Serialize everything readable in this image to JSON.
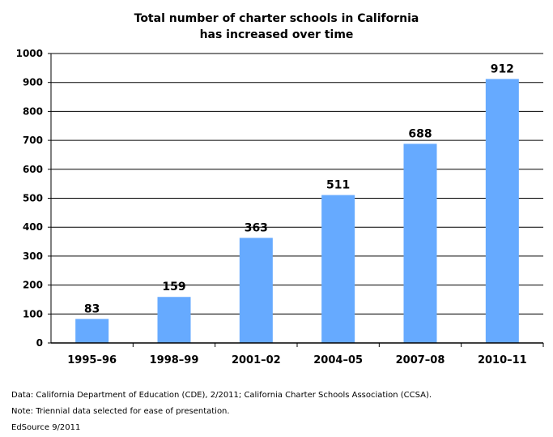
{
  "chart_data": {
    "type": "bar",
    "title_lines": [
      "Total number of charter schools in California",
      "has increased over time"
    ],
    "categories": [
      "1995–96",
      "1998–99",
      "2001–02",
      "2004–05",
      "2007–08",
      "2010–11"
    ],
    "values": [
      83,
      159,
      363,
      511,
      688,
      912
    ],
    "value_labels": [
      "83",
      "159",
      "363",
      "511",
      "688",
      "912"
    ],
    "ylim": [
      0,
      1000
    ],
    "yticks": [
      0,
      100,
      200,
      300,
      400,
      500,
      600,
      700,
      800,
      900,
      1000
    ],
    "ytick_labels": [
      "0",
      "100",
      "200",
      "300",
      "400",
      "500",
      "600",
      "700",
      "800",
      "900",
      "1000"
    ],
    "grid": true,
    "bar_color": "#66aaff",
    "grid_color": "#000000"
  },
  "footnotes": {
    "data": "Data: California Department of Education (CDE), 2/2011; California Charter Schools Association (CCSA).",
    "note": "Note: Triennial data selected for ease of presentation.",
    "source": "EdSource 9/2011"
  }
}
